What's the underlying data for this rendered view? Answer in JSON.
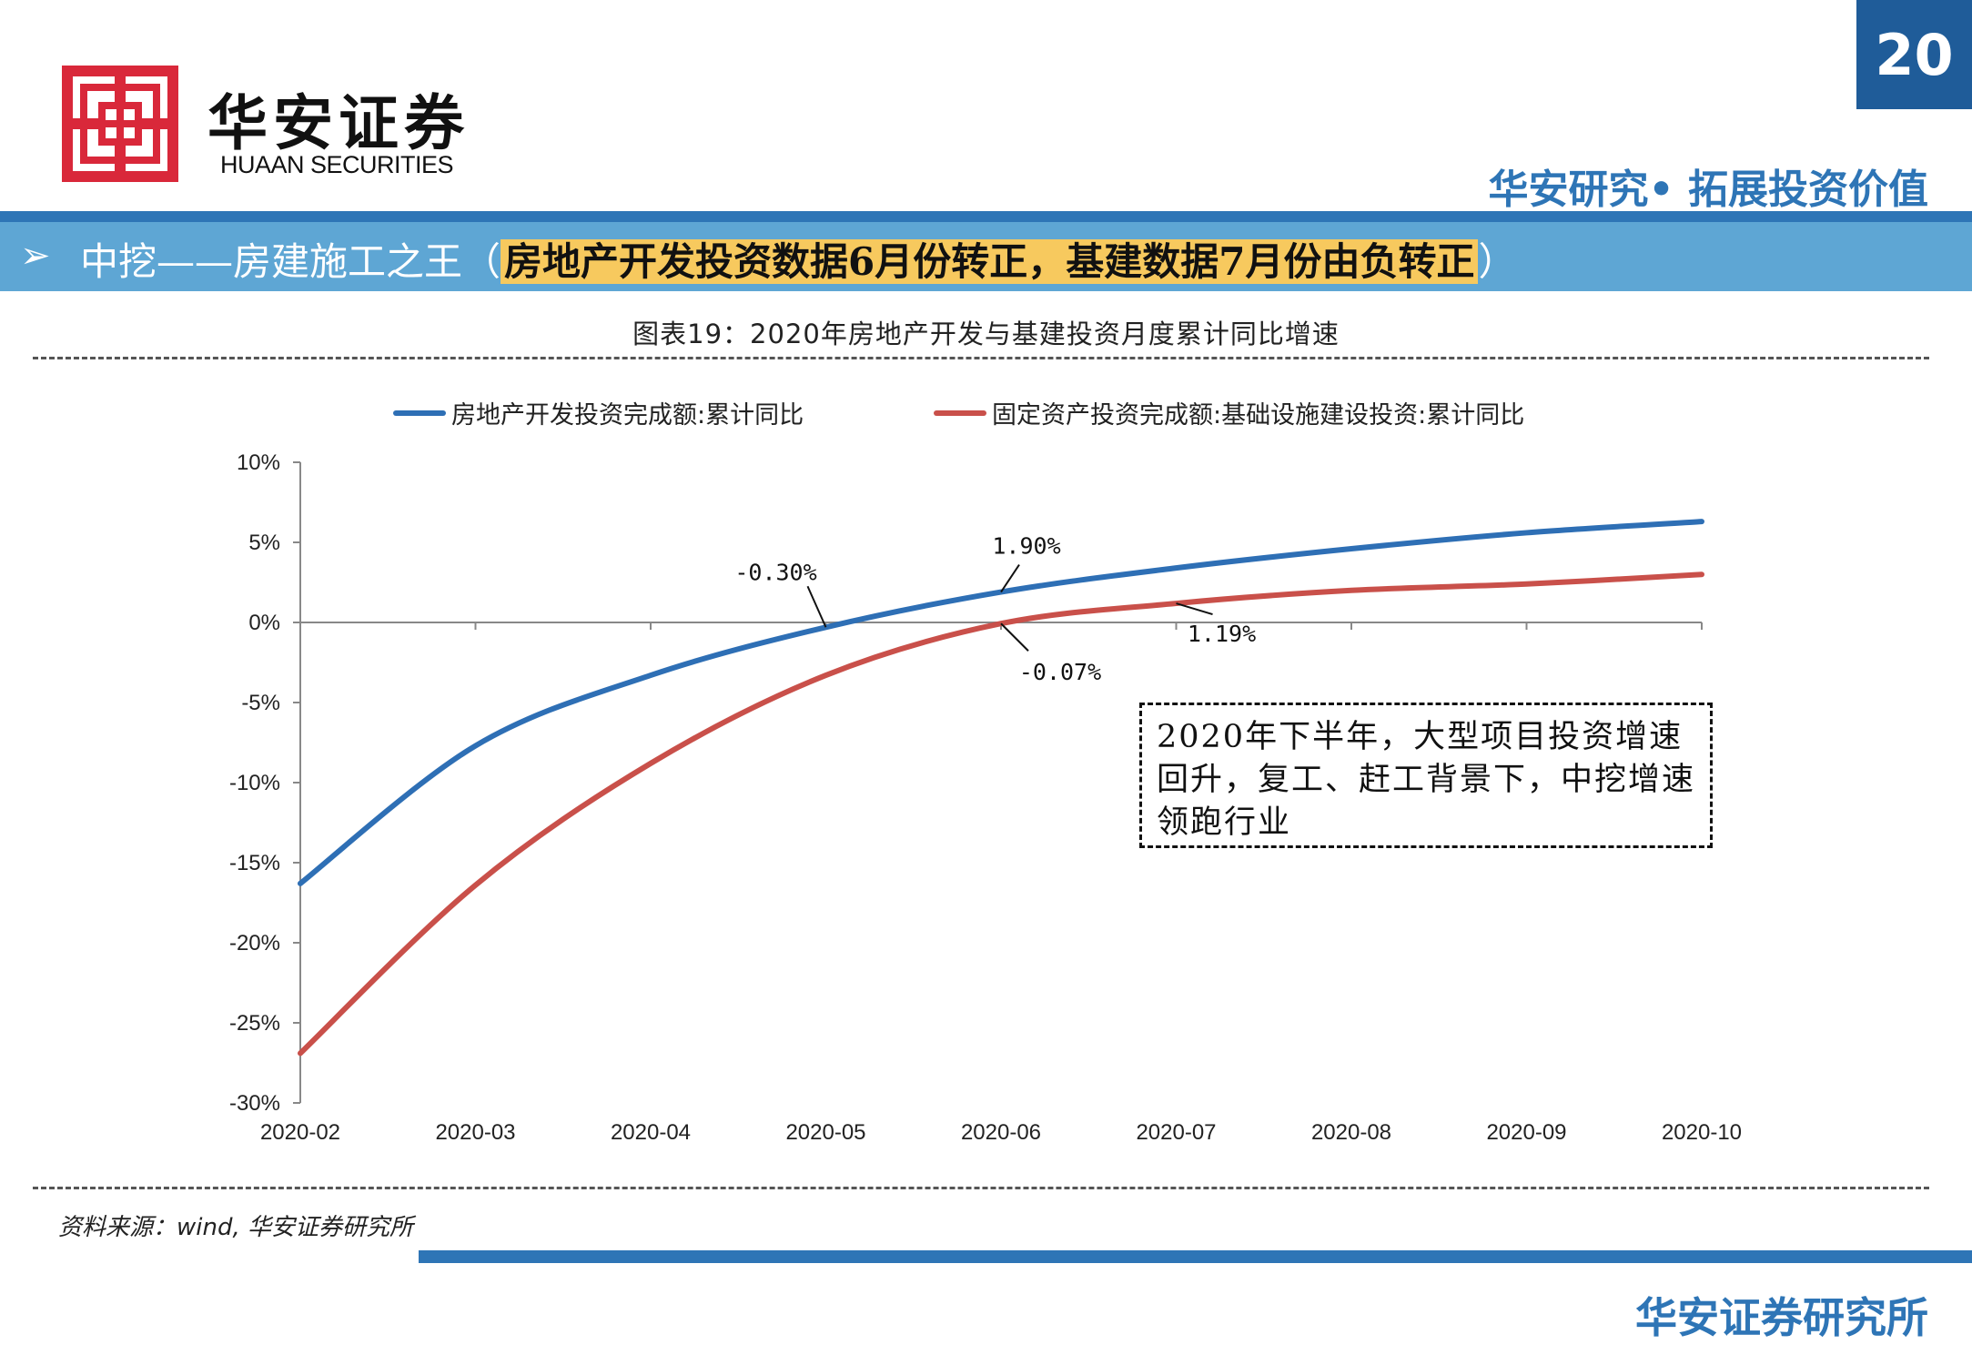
{
  "header": {
    "page_number": "20",
    "logo_cn": "华安证券",
    "logo_en": "HUAAN SECURITIES",
    "slogan": "华安研究• 拓展投资价值"
  },
  "section": {
    "arrow": "➢",
    "prefix": "中挖——房建施工之王（",
    "highlight": "房地产开发投资数据6月份转正，基建数据7月份由负转正",
    "suffix": "）"
  },
  "colors": {
    "brand_blue": "#2e75b6",
    "band_blue": "#5ea6d4",
    "highlight_yellow": "#f7c95e",
    "logo_red": "#d9283a",
    "series_real_estate": "#2e6fb5",
    "series_infra": "#c9504a"
  },
  "chart_data": {
    "type": "line",
    "title": "图表19：2020年房地产开发与基建投资月度累计同比增速",
    "x": [
      "2020-02",
      "2020-03",
      "2020-04",
      "2020-05",
      "2020-06",
      "2020-07",
      "2020-08",
      "2020-09",
      "2020-10"
    ],
    "series": [
      {
        "name": "房地产开发投资完成额:累计同比",
        "values": [
          -16.3,
          -7.7,
          -3.3,
          -0.3,
          1.9,
          3.4,
          4.6,
          5.6,
          6.3
        ],
        "color": "#2e6fb5"
      },
      {
        "name": "固定资产投资完成额:基础设施建设投资:累计同比",
        "values": [
          -26.9,
          -16.4,
          -8.8,
          -3.3,
          -0.07,
          1.19,
          2.0,
          2.4,
          3.0
        ],
        "color": "#c9504a"
      }
    ],
    "y_ticks": [
      "10%",
      "5%",
      "0%",
      "-5%",
      "-10%",
      "-15%",
      "-20%",
      "-25%",
      "-30%"
    ],
    "ylim": [
      -30,
      10
    ],
    "grid": false,
    "legend_position": "top",
    "annotations": [
      {
        "text": "-0.30%",
        "series": 0,
        "x_index": 3
      },
      {
        "text": "1.90%",
        "series": 0,
        "x_index": 4
      },
      {
        "text": "-0.07%",
        "series": 1,
        "x_index": 4
      },
      {
        "text": "1.19%",
        "series": 1,
        "x_index": 5
      }
    ]
  },
  "note": "2020年下半年，大型项目投资增速回升，复工、赶工背景下，中挖增速领跑行业",
  "source": "资料来源：wind, 华安证券研究所",
  "footer": "华安证券研究所"
}
